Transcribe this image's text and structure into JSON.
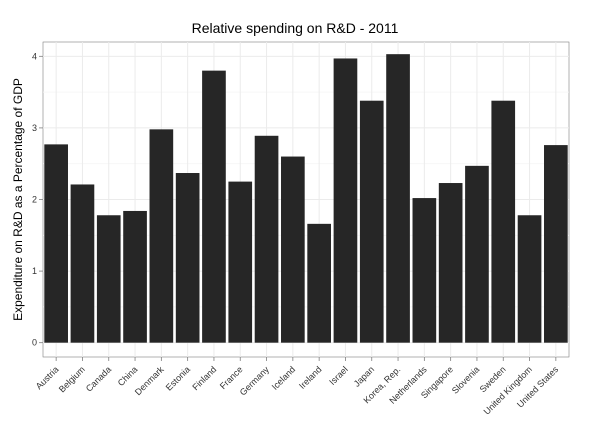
{
  "chart_data": {
    "type": "bar",
    "title": "Relative spending on R&D -  2011",
    "xlabel": "",
    "ylabel": "Expenditure on R&D as a Percentage of GDP",
    "categories": [
      "Austria",
      "Belgium",
      "Canada",
      "China",
      "Denmark",
      "Estonia",
      "Finland",
      "France",
      "Germany",
      "Iceland",
      "Ireland",
      "Israel",
      "Japan",
      "Korea, Rep.",
      "Netherlands",
      "Singapore",
      "Slovenia",
      "Sweden",
      "United Kingdom",
      "United States"
    ],
    "values": [
      2.77,
      2.21,
      1.78,
      1.84,
      2.98,
      2.37,
      3.8,
      2.25,
      2.89,
      2.6,
      1.66,
      3.97,
      3.38,
      4.03,
      2.02,
      2.23,
      2.47,
      3.38,
      1.78,
      2.76
    ],
    "yticks": [
      0,
      1,
      2,
      3,
      4
    ],
    "ylim": [
      -0.2,
      4.2
    ],
    "grid": true,
    "colors": {
      "bar": "#262626",
      "panel": "#ffffff",
      "grid_major": "#ebebeb",
      "grid_minor": "#f5f5f5",
      "border": "#7f7f7f"
    }
  }
}
